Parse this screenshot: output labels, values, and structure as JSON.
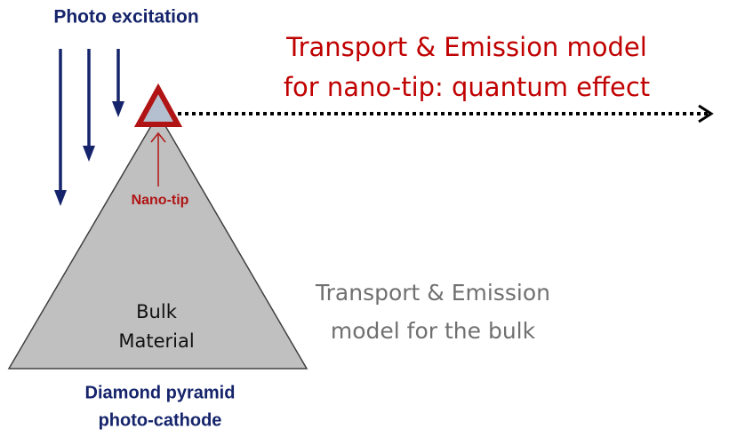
{
  "labels": {
    "excitation": "Photo excitation",
    "nano_model": [
      "Transport & Emission model",
      "for nano-tip: quantum effect"
    ],
    "nano_tip": "Nano-tip",
    "bulk": [
      "Bulk",
      "Material"
    ],
    "bulk_model": [
      "Transport & Emission",
      "model for the bulk"
    ],
    "pyramid": [
      "Diamond pyramid",
      "photo-cathode"
    ]
  }
}
